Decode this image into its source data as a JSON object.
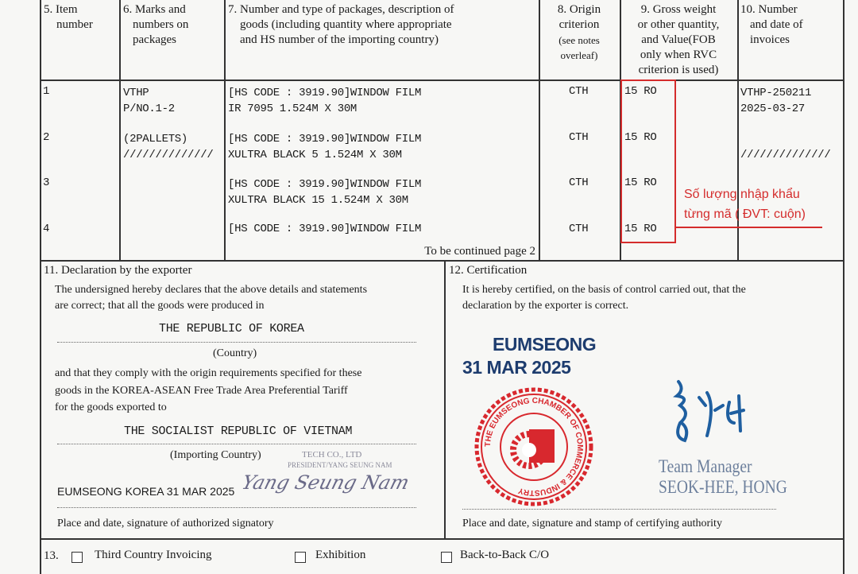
{
  "headers": {
    "item": [
      "5. Item",
      "number"
    ],
    "marks": [
      "6. Marks and",
      "numbers on",
      "packages"
    ],
    "desc": [
      "7. Number and type of packages, description of",
      "goods (including quantity where appropriate",
      "and HS number of the importing country)"
    ],
    "origin": [
      "8. Origin",
      "criterion",
      "(see notes",
      "overleaf)"
    ],
    "weight": [
      "9. Gross weight",
      "or other quantity,",
      "and Value(FOB",
      "only when RVC",
      "criterion is used)"
    ],
    "invoice": [
      "10. Number",
      "and date of",
      "invoices"
    ]
  },
  "rows": [
    {
      "item": "1",
      "marks": [
        "VTHP",
        "P/NO.1-2"
      ],
      "desc": [
        "[HS CODE : 3919.90]WINDOW FILM",
        "IR 7095 1.524M X 30M"
      ],
      "origin": "CTH",
      "qty": "15 RO",
      "invoice": [
        "VTHP-250211",
        "2025-03-27"
      ]
    },
    {
      "item": "2",
      "marks": [
        "(2PALLETS)",
        "//////////////"
      ],
      "desc": [
        "[HS CODE : 3919.90]WINDOW FILM",
        "XULTRA BLACK 5 1.524M X 30M"
      ],
      "origin": "CTH",
      "qty": "15 RO",
      "invoice": [
        "",
        "//////////////"
      ]
    },
    {
      "item": "3",
      "desc": [
        "[HS CODE : 3919.90]WINDOW FILM",
        "XULTRA BLACK 15 1.524M X 30M"
      ],
      "origin": "CTH",
      "qty": "15 RO"
    },
    {
      "item": "4",
      "desc": [
        "[HS CODE : 3919.90]WINDOW FILM"
      ],
      "origin": "CTH",
      "qty": "15 RO"
    }
  ],
  "continued": "To be continued page 2",
  "annotation": {
    "lines": [
      "Số lượng nhập khẩu",
      "từng mã ( ĐVT: cuộn)"
    ],
    "color": "#d42c2c"
  },
  "declaration": {
    "title": "11. Declaration by the exporter",
    "text1": "The undersigned hereby declares that the above details and statements",
    "text2": "are correct; that all the goods were produced in",
    "country": "THE REPUBLIC OF KOREA",
    "country_label": "(Country)",
    "text3": "and that they comply with the origin requirements specified for these",
    "text4": "goods in the KOREA-ASEAN Free Trade Area Preferential Tariff",
    "text5": "for the goods exported to",
    "importing": "THE SOCIALIST REPUBLIC OF VIETNAM",
    "importing_label": "(Importing Country)",
    "company_stamp": [
      "TECH CO., LTD",
      "PRESIDENT/YANG SEUNG NAM"
    ],
    "place_date": "EUMSEONG KOREA 31 MAR 2025",
    "signature": "Yang Seung Nam",
    "footer": "Place and date, signature of authorized signatory"
  },
  "certification": {
    "title": "12. Certification",
    "text1": "It is hereby certified, on the basis of control carried out, that the",
    "text2": "declaration by the exporter is correct.",
    "stamp_place": "EUMSEONG",
    "stamp_date": "31 MAR 2025",
    "seal_text": "THE EUMSEONG CHAMBER OF COMMERCE & INDUSTRY",
    "signer_title": "Team Manager",
    "signer_name": "SEOK-HEE, HONG",
    "footer": "Place and date, signature and stamp of certifying authority"
  },
  "box13": {
    "label": "13.",
    "options": [
      {
        "label": "Third Country Invoicing",
        "checked": false
      },
      {
        "label": "Exhibition",
        "checked": false
      },
      {
        "label": "Back-to-Back C/O",
        "checked": false
      }
    ]
  }
}
